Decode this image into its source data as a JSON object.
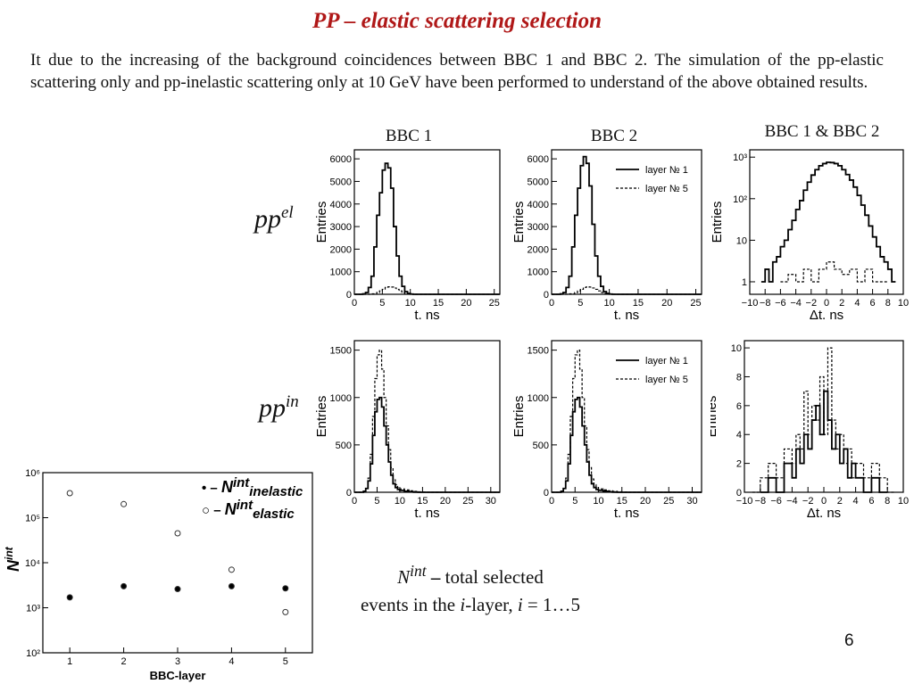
{
  "slide": {
    "title_em": "PP",
    "title_rest": " – elastic scattering selection",
    "intro": "It due to the increasing of the background coincidences between BBC 1 and BBC 2. The simulation of the pp-elastic scattering only and pp-inelastic scattering only at 10 GeV have been performed to understand of the above obtained results.",
    "col_labels": [
      "BBC 1",
      "BBC 2",
      "BBC 1 & BBC 2"
    ],
    "row_labels": [
      {
        "base": "pp",
        "sup": "el"
      },
      {
        "base": "pp",
        "sup": "in"
      }
    ],
    "caption": {
      "sym": "N",
      "sup": "int",
      "dash": " – ",
      "line1": "total selected",
      "line2a": "events in the ",
      "i1": "i",
      "line2b": "-layer, ",
      "i2": "i",
      "line2c": " = 1…5"
    },
    "page_number": "6"
  },
  "chart_data": [
    {
      "type": "line",
      "id": "el_bbc1",
      "style": "step",
      "xlabel": "t,  ns",
      "ylabel": "Entries",
      "xlim": [
        0,
        26
      ],
      "ylim": [
        0,
        6400
      ],
      "xticks": [
        0,
        5,
        10,
        15,
        20,
        25
      ],
      "yticks": [
        0,
        1000,
        2000,
        3000,
        4000,
        5000,
        6000
      ],
      "series": [
        {
          "dash": false,
          "x": [
            0,
            0.5,
            1,
            1.5,
            2,
            2.5,
            3,
            3.5,
            4,
            4.5,
            5,
            5.5,
            6,
            6.5,
            7,
            7.5,
            8,
            8.5,
            9,
            9.5,
            10,
            10.5,
            11,
            11.5,
            12,
            26
          ],
          "y": [
            0,
            0,
            0,
            20,
            80,
            300,
            800,
            2100,
            3500,
            4500,
            5500,
            5800,
            5600,
            4700,
            3000,
            1700,
            800,
            350,
            120,
            40,
            10,
            0,
            0,
            0,
            0,
            0
          ]
        },
        {
          "dash": true,
          "x": [
            0,
            1,
            2,
            3,
            4,
            4.5,
            5,
            5.5,
            6,
            6.5,
            7,
            7.5,
            8,
            8.5,
            9,
            9.5,
            10,
            11,
            12,
            26
          ],
          "y": [
            0,
            0,
            0,
            20,
            80,
            150,
            220,
            300,
            330,
            320,
            280,
            220,
            150,
            80,
            40,
            15,
            5,
            0,
            0,
            0
          ]
        }
      ]
    },
    {
      "type": "line",
      "id": "el_bbc2",
      "style": "step",
      "xlabel": "t,  ns",
      "ylabel": "Entries",
      "xlim": [
        0,
        26
      ],
      "ylim": [
        0,
        6400
      ],
      "xticks": [
        0,
        5,
        10,
        15,
        20,
        25
      ],
      "yticks": [
        0,
        1000,
        2000,
        3000,
        4000,
        5000,
        6000
      ],
      "legend": [
        "layer № 1",
        "layer № 5"
      ],
      "series": [
        {
          "dash": false,
          "x": [
            0,
            0.5,
            1,
            1.5,
            2,
            2.5,
            3,
            3.5,
            4,
            4.5,
            5,
            5.5,
            6,
            6.5,
            7,
            7.5,
            8,
            8.5,
            9,
            9.5,
            10,
            10.5,
            11,
            11.5,
            12,
            26
          ],
          "y": [
            0,
            0,
            0,
            20,
            80,
            300,
            800,
            2100,
            3500,
            4700,
            5700,
            6100,
            5800,
            4800,
            3100,
            1700,
            800,
            350,
            120,
            40,
            10,
            0,
            0,
            0,
            0,
            0
          ]
        },
        {
          "dash": true,
          "x": [
            0,
            1,
            2,
            3,
            4,
            4.5,
            5,
            5.5,
            6,
            6.5,
            7,
            7.5,
            8,
            8.5,
            9,
            9.5,
            10,
            11,
            12,
            26
          ],
          "y": [
            0,
            0,
            0,
            20,
            80,
            150,
            220,
            300,
            330,
            320,
            280,
            220,
            150,
            80,
            40,
            15,
            5,
            0,
            0,
            0
          ]
        }
      ]
    },
    {
      "type": "line",
      "id": "el_bbc12",
      "style": "step",
      "log_y": true,
      "xlabel": "Δt,  ns",
      "ylabel": "Entries",
      "xlim": [
        -10,
        10
      ],
      "ylim": [
        0.5,
        1500
      ],
      "xticks": [
        -10,
        -8,
        -6,
        -4,
        -2,
        0,
        2,
        4,
        6,
        8,
        10
      ],
      "yticks": [
        1,
        10,
        100,
        1000
      ],
      "yticklabels": [
        "1",
        "10",
        "10²",
        "10³"
      ],
      "series": [
        {
          "dash": false,
          "x": [
            -8.5,
            -8,
            -7.5,
            -7,
            -6.5,
            -6,
            -5.5,
            -5,
            -4.5,
            -4,
            -3.5,
            -3,
            -2.5,
            -2,
            -1.5,
            -1,
            -0.5,
            0,
            0.5,
            1,
            1.5,
            2,
            2.5,
            3,
            3.5,
            4,
            4.5,
            5,
            5.5,
            6,
            6.5,
            7,
            7.5,
            8,
            8.5,
            9
          ],
          "y": [
            1,
            2,
            1,
            3,
            4,
            7,
            10,
            18,
            30,
            55,
            90,
            160,
            250,
            370,
            500,
            620,
            700,
            750,
            740,
            700,
            620,
            500,
            380,
            280,
            190,
            120,
            70,
            40,
            22,
            12,
            7,
            4,
            3,
            2,
            1,
            1
          ]
        },
        {
          "dash": true,
          "x": [
            -6,
            -5,
            -4,
            -3,
            -2,
            -1,
            0,
            1,
            2,
            3,
            4,
            5,
            6,
            7,
            8
          ],
          "y": [
            1,
            1.5,
            1,
            2,
            1,
            2,
            3,
            2,
            1.5,
            2,
            1,
            2,
            1,
            1,
            1
          ]
        }
      ]
    },
    {
      "type": "line",
      "id": "in_bbc1",
      "style": "step",
      "xlabel": "t,  ns",
      "ylabel": "Entries",
      "xlim": [
        0,
        32
      ],
      "ylim": [
        0,
        1600
      ],
      "xticks": [
        0,
        5,
        10,
        15,
        20,
        25,
        30
      ],
      "yticks": [
        0,
        500,
        1000,
        1500
      ],
      "series": [
        {
          "dash": false,
          "x": [
            0,
            1,
            2,
            2.5,
            3,
            3.5,
            4,
            4.5,
            5,
            5.5,
            6,
            6.5,
            7,
            7.5,
            8,
            8.5,
            9,
            9.5,
            10,
            11,
            12,
            13,
            14,
            32
          ],
          "y": [
            0,
            0,
            10,
            40,
            120,
            300,
            600,
            850,
            980,
            1000,
            900,
            700,
            500,
            320,
            180,
            90,
            50,
            30,
            20,
            10,
            5,
            2,
            0,
            0
          ]
        },
        {
          "dash": true,
          "x": [
            0,
            1,
            2,
            2.5,
            3,
            3.5,
            4,
            4.5,
            5,
            5.5,
            6,
            6.5,
            7,
            7.5,
            8,
            8.5,
            9,
            9.5,
            10,
            11,
            12,
            13,
            14,
            15,
            16,
            32
          ],
          "y": [
            0,
            0,
            10,
            40,
            150,
            400,
            800,
            1200,
            1450,
            1500,
            1300,
            1000,
            700,
            450,
            260,
            140,
            80,
            50,
            35,
            25,
            15,
            10,
            5,
            3,
            0,
            0
          ]
        }
      ]
    },
    {
      "type": "line",
      "id": "in_bbc2",
      "style": "step",
      "xlabel": "t,  ns",
      "ylabel": "Entries",
      "xlim": [
        0,
        32
      ],
      "ylim": [
        0,
        1600
      ],
      "xticks": [
        0,
        5,
        10,
        15,
        20,
        25,
        30
      ],
      "yticks": [
        0,
        500,
        1000,
        1500
      ],
      "legend": [
        "layer № 1",
        "layer № 5"
      ],
      "series": [
        {
          "dash": false,
          "x": [
            0,
            1,
            2,
            2.5,
            3,
            3.5,
            4,
            4.5,
            5,
            5.5,
            6,
            6.5,
            7,
            7.5,
            8,
            8.5,
            9,
            9.5,
            10,
            11,
            12,
            13,
            14,
            32
          ],
          "y": [
            0,
            0,
            10,
            40,
            120,
            300,
            600,
            850,
            980,
            1000,
            900,
            700,
            500,
            320,
            180,
            90,
            50,
            30,
            20,
            10,
            5,
            2,
            0,
            0
          ]
        },
        {
          "dash": true,
          "x": [
            0,
            1,
            2,
            2.5,
            3,
            3.5,
            4,
            4.5,
            5,
            5.5,
            6,
            6.5,
            7,
            7.5,
            8,
            8.5,
            9,
            9.5,
            10,
            11,
            12,
            13,
            14,
            15,
            16,
            32
          ],
          "y": [
            0,
            0,
            10,
            40,
            150,
            400,
            800,
            1200,
            1450,
            1500,
            1300,
            1000,
            700,
            450,
            260,
            140,
            80,
            50,
            35,
            25,
            15,
            10,
            5,
            3,
            0,
            0
          ]
        }
      ]
    },
    {
      "type": "line",
      "id": "in_bbc12",
      "style": "step",
      "xlabel": "Δt,  ns",
      "ylabel": "Entries",
      "xlim": [
        -10,
        10
      ],
      "ylim": [
        0,
        10.5
      ],
      "xticks": [
        -10,
        -8,
        -6,
        -4,
        -2,
        0,
        2,
        4,
        6,
        8,
        10
      ],
      "yticks": [
        0,
        2,
        4,
        6,
        8,
        10
      ],
      "series": [
        {
          "dash": false,
          "x": [
            -8,
            -7,
            -6,
            -5,
            -4,
            -3.5,
            -3,
            -2.5,
            -2,
            -1.5,
            -1,
            -0.5,
            0,
            0.5,
            1,
            1.5,
            2,
            2.5,
            3,
            3.5,
            4,
            5,
            6,
            7,
            8
          ],
          "y": [
            0,
            1,
            0,
            2,
            1,
            3,
            2,
            4,
            3,
            5,
            6,
            4,
            7,
            5,
            3,
            4,
            2,
            3,
            1,
            2,
            1,
            0,
            1,
            0,
            0
          ]
        },
        {
          "dash": true,
          "x": [
            -9,
            -8,
            -7,
            -6,
            -5,
            -4,
            -3.5,
            -3,
            -2.5,
            -2,
            -1.5,
            -1,
            -0.5,
            0,
            0.5,
            1,
            1.5,
            2,
            2.5,
            3,
            3.5,
            4,
            5,
            6,
            7,
            8,
            9
          ],
          "y": [
            0,
            1,
            2,
            1,
            3,
            2,
            4,
            3,
            7,
            4,
            6,
            5,
            8,
            4,
            10,
            5,
            3,
            4,
            2,
            3,
            1,
            2,
            1,
            2,
            1,
            0,
            0
          ]
        }
      ]
    },
    {
      "type": "scatter",
      "id": "nint_bbc",
      "log_y": true,
      "xlabel": "BBC-layer",
      "ylabel": "N",
      "ylabel_sup": "int",
      "xlim": [
        0.5,
        5.5
      ],
      "ylim": [
        100,
        1000000
      ],
      "xticks": [
        1,
        2,
        3,
        4,
        5
      ],
      "yticks": [
        100,
        1000,
        10000,
        100000,
        1000000
      ],
      "yticklabels": [
        "10²",
        "10³",
        "10⁴",
        "10⁵",
        "10⁶"
      ],
      "legend": [
        {
          "marker": "filled",
          "prefix": "• – ",
          "sym": "N",
          "sup": "int",
          "sub": "inelastic"
        },
        {
          "marker": "open",
          "prefix": "○ – ",
          "sym": "N",
          "sup": "int",
          "sub": "elastic"
        }
      ],
      "series": [
        {
          "marker": "filled",
          "x": [
            1,
            2,
            3,
            4,
            5
          ],
          "y": [
            1700,
            3000,
            2600,
            3000,
            2700
          ]
        },
        {
          "marker": "open",
          "x": [
            1,
            2,
            3,
            4,
            5
          ],
          "y": [
            350000,
            200000,
            45000,
            7000,
            800
          ]
        }
      ]
    }
  ]
}
